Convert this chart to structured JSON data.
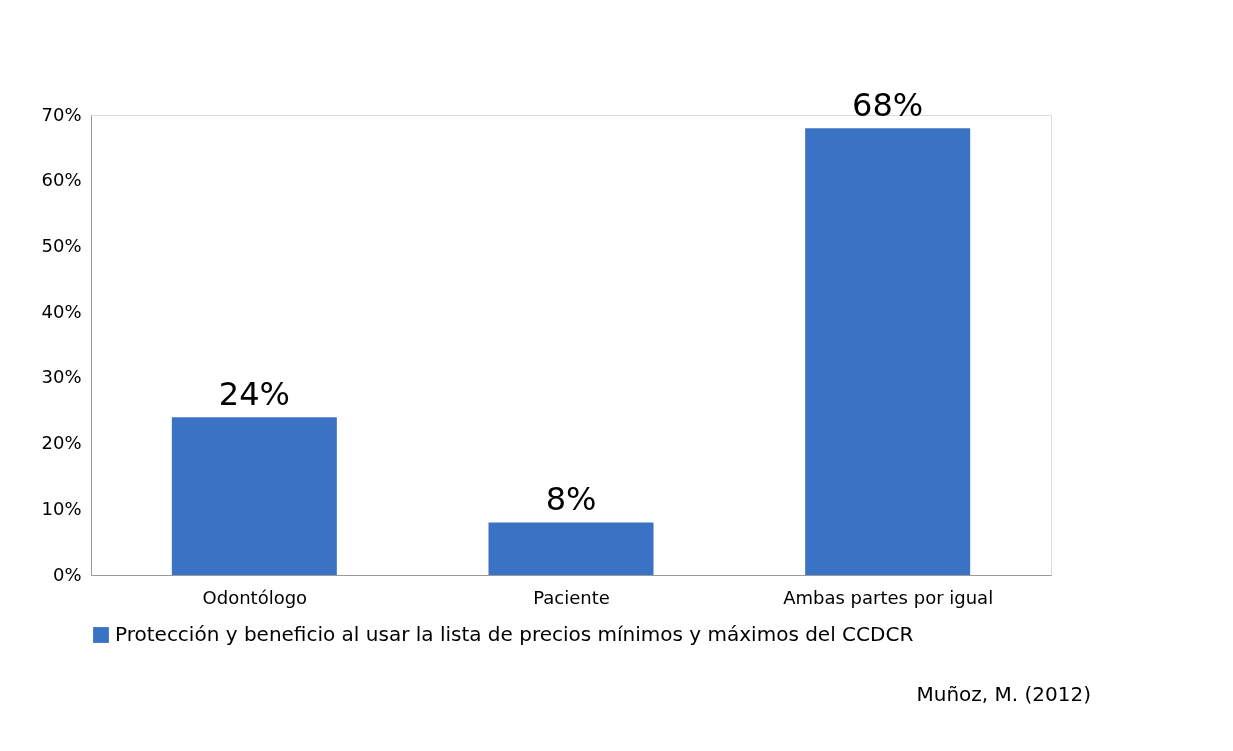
{
  "chart_data": {
    "type": "bar",
    "categories": [
      "Odontólogo",
      "Paciente",
      "Ambas partes por igual"
    ],
    "series": [
      {
        "name": "Protección y beneficio al usar la lista de precios mínimos y máximos del CCDCR",
        "color": "#3a72c4",
        "values": [
          24,
          8,
          68
        ]
      }
    ],
    "value_labels": [
      "24%",
      "8%",
      "68%"
    ],
    "ylim": [
      0,
      70
    ],
    "yticks": [
      {
        "value": 0,
        "label": "0%"
      },
      {
        "value": 10,
        "label": "10%"
      },
      {
        "value": 20,
        "label": "20%"
      },
      {
        "value": 30,
        "label": "30%"
      },
      {
        "value": 40,
        "label": "40%"
      },
      {
        "value": 50,
        "label": "50%"
      },
      {
        "value": 60,
        "label": "60%"
      },
      {
        "value": 70,
        "label": "70%"
      }
    ],
    "grid": false,
    "legend": "bottom",
    "annotations": [
      "Muñoz, M. (2012)"
    ]
  }
}
